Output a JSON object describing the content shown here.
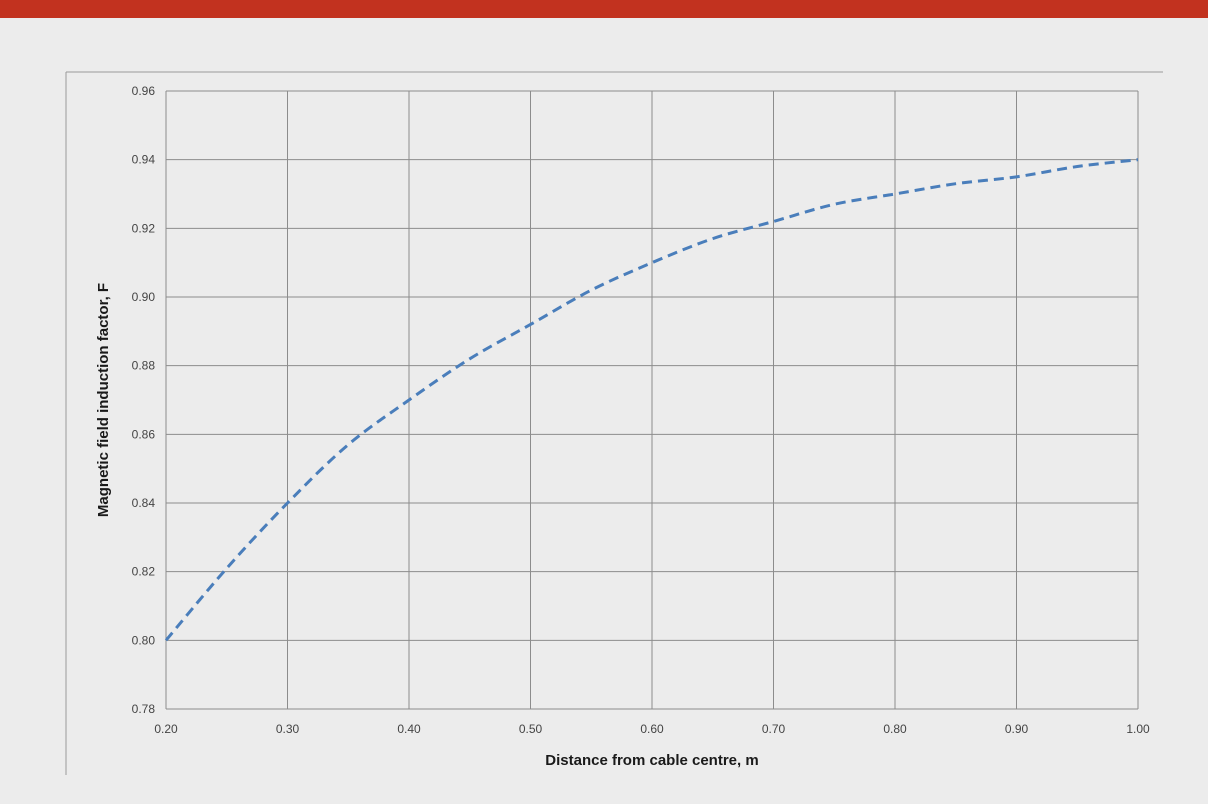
{
  "chart_data": {
    "type": "line",
    "title": "",
    "xlabel": "Distance from cable centre, m",
    "ylabel": "Magnetic field induction factor, F",
    "xlim": [
      0.2,
      1.0
    ],
    "ylim": [
      0.78,
      0.96
    ],
    "x_ticks": [
      "0.20",
      "0.30",
      "0.40",
      "0.50",
      "0.60",
      "0.70",
      "0.80",
      "0.90",
      "1.00"
    ],
    "y_ticks": [
      "0.78",
      "0.80",
      "0.82",
      "0.84",
      "0.86",
      "0.88",
      "0.90",
      "0.92",
      "0.94",
      "0.96"
    ],
    "grid": true,
    "legend": "none",
    "series": [
      {
        "color": "#4a7ebb",
        "style": "dashed",
        "x": [
          0.2,
          0.25,
          0.3,
          0.35,
          0.4,
          0.45,
          0.5,
          0.55,
          0.6,
          0.65,
          0.7,
          0.75,
          0.8,
          0.85,
          0.9,
          0.95,
          1.0
        ],
        "y": [
          0.8,
          0.821,
          0.84,
          0.857,
          0.87,
          0.882,
          0.892,
          0.902,
          0.91,
          0.917,
          0.922,
          0.927,
          0.93,
          0.933,
          0.935,
          0.938,
          0.94
        ]
      }
    ]
  }
}
